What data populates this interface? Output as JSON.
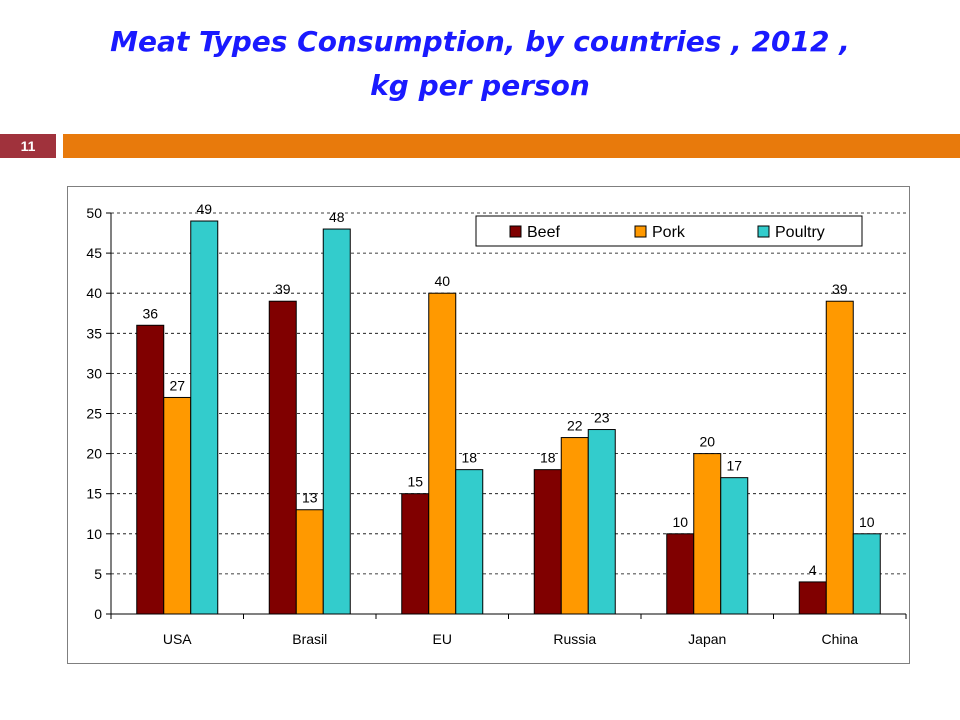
{
  "slide": {
    "title_line1": "Meat Types Consumption, by countries , 2012 ,",
    "title_line2": "kg per person",
    "page_number": "11"
  },
  "colors": {
    "title": "#1a1aff",
    "badge": "#a0323c",
    "accent_bar": "#e87a0c"
  },
  "chart_data": {
    "type": "bar",
    "title": "",
    "xlabel": "",
    "ylabel": "",
    "categories": [
      "USA",
      "Brasil",
      "EU",
      "Russia",
      "Japan",
      "China"
    ],
    "series": [
      {
        "name": "Beef",
        "color": "#800000",
        "values": [
          36,
          39,
          15,
          18,
          10,
          4
        ]
      },
      {
        "name": "Pork",
        "color": "#ff9900",
        "values": [
          27,
          13,
          40,
          22,
          20,
          39
        ]
      },
      {
        "name": "Poultry",
        "color": "#33cccc",
        "values": [
          49,
          48,
          18,
          23,
          17,
          10
        ]
      }
    ],
    "ylim": [
      0,
      50
    ],
    "yticks": [
      0,
      5,
      10,
      15,
      20,
      25,
      30,
      35,
      40,
      45,
      50
    ],
    "grid": true,
    "grid_style": "dashed",
    "legend_position": "top-right",
    "data_labels": true
  }
}
